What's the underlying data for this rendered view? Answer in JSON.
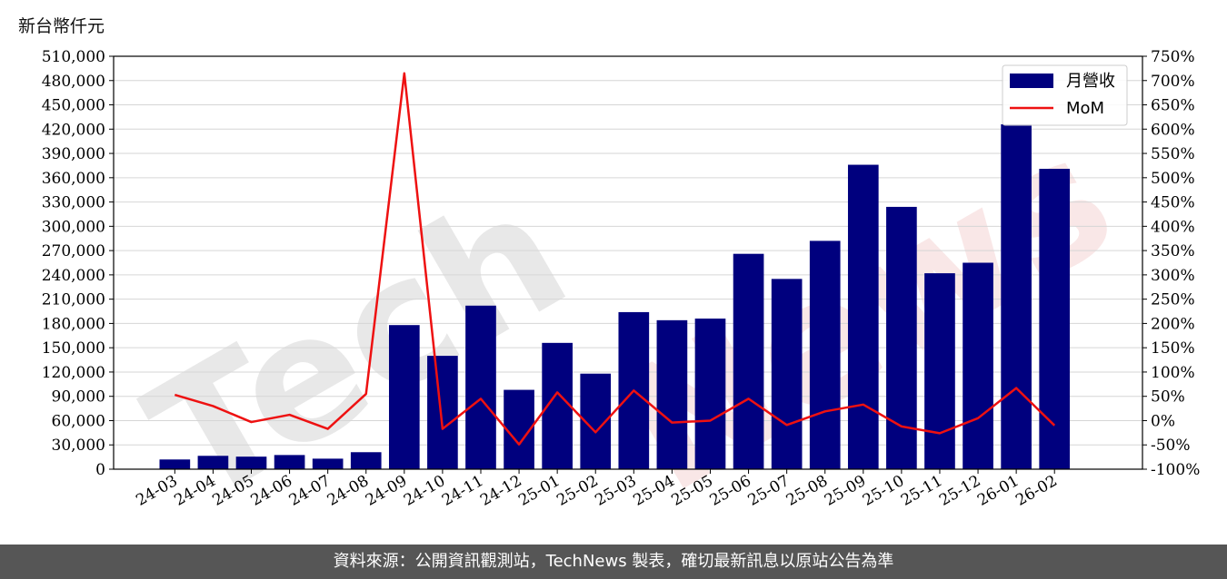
{
  "unit_label": "新台幣仟元",
  "footer": "資料來源：公開資訊觀測站，TechNews 製表，確切最新訊息以原站公告為準",
  "watermark": {
    "part1": "Tech",
    "part2": "News",
    "color1": "#e8e8e8",
    "color2": "#f9e7e7"
  },
  "colors": {
    "bar": "#00007e",
    "line": "#ee1111",
    "grid": "#d6d6d6"
  },
  "chart_data": {
    "type": "bar+line",
    "categories": [
      "24-03",
      "24-04",
      "24-05",
      "24-06",
      "24-07",
      "24-08",
      "24-09",
      "24-10",
      "24-11",
      "24-12",
      "25-01",
      "25-02",
      "25-03",
      "25-04",
      "25-05",
      "25-06",
      "25-07",
      "25-08",
      "25-09",
      "25-10",
      "25-11",
      "25-12",
      "26-01",
      "26-02"
    ],
    "series": [
      {
        "name": "月營收",
        "type": "bar",
        "axis": "left",
        "values": [
          12000,
          16500,
          15500,
          17500,
          13000,
          21000,
          178000,
          140000,
          202000,
          98000,
          156000,
          118000,
          194000,
          184000,
          186000,
          266000,
          235000,
          282000,
          376000,
          324000,
          242000,
          255000,
          426000,
          371000
        ]
      },
      {
        "name": "MoM",
        "type": "line",
        "axis": "right",
        "values": [
          53,
          30,
          -3,
          12,
          -17,
          55,
          715,
          -17,
          45,
          -49,
          58,
          -24,
          62,
          -4,
          0,
          45,
          -9,
          19,
          33,
          -12,
          -26,
          5,
          67,
          -10
        ]
      }
    ],
    "y_left": {
      "lim": [
        0,
        510000
      ],
      "ticks": [
        0,
        30000,
        60000,
        90000,
        120000,
        150000,
        180000,
        210000,
        240000,
        270000,
        300000,
        330000,
        360000,
        390000,
        420000,
        450000,
        480000,
        510000
      ],
      "tick_labels": [
        "0",
        "30,000",
        "60,000",
        "90,000",
        "120,000",
        "150,000",
        "180,000",
        "210,000",
        "240,000",
        "270,000",
        "300,000",
        "330,000",
        "360,000",
        "390,000",
        "420,000",
        "450,000",
        "480,000",
        "510,000"
      ]
    },
    "y_right": {
      "lim": [
        -100,
        750
      ],
      "ticks": [
        -100,
        -50,
        0,
        50,
        100,
        150,
        200,
        250,
        300,
        350,
        400,
        450,
        500,
        550,
        600,
        650,
        700,
        750
      ],
      "tick_labels": [
        "-100%",
        "-50%",
        "0%",
        "50%",
        "100%",
        "150%",
        "200%",
        "250%",
        "300%",
        "350%",
        "400%",
        "450%",
        "500%",
        "550%",
        "600%",
        "650%",
        "700%",
        "750%"
      ]
    },
    "grid": true,
    "legend_position": "top-right"
  }
}
